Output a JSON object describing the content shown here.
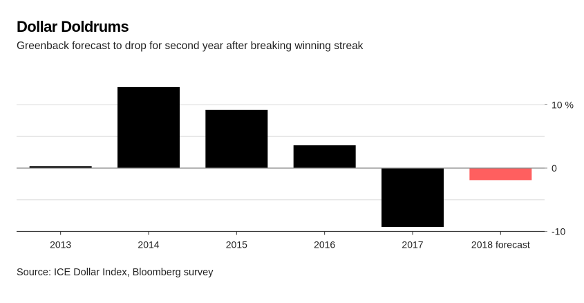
{
  "header": {
    "title": "Dollar Doldrums",
    "subtitle": "Greenback forecast to drop for second year after breaking winning streak"
  },
  "footer": {
    "source": "Source: ICE Dollar Index, Bloomberg survey"
  },
  "colors": {
    "actual": "#000000",
    "forecast": "#ff5f5f",
    "gridline": "#e3e3e3",
    "axis": "#888888"
  },
  "chart_data": {
    "type": "bar",
    "title": "Dollar Doldrums",
    "subtitle": "Greenback forecast to drop for second year after breaking winning streak",
    "xlabel": "",
    "ylabel": "%",
    "categories": [
      "2013",
      "2014",
      "2015",
      "2016",
      "2017",
      "2018 forecast"
    ],
    "values": [
      0.3,
      12.8,
      9.2,
      3.6,
      -9.3,
      -1.9
    ],
    "series_type": [
      "actual",
      "actual",
      "actual",
      "actual",
      "actual",
      "forecast"
    ],
    "ylim": [
      -10,
      14
    ],
    "yticks": [
      -10,
      0,
      10
    ],
    "ytick_labels": [
      "-10",
      "0",
      "10 %"
    ],
    "minor_gridlines": [
      -5,
      5
    ],
    "grid": true,
    "y_axis_side": "right",
    "legend": "none",
    "source": "Source: ICE Dollar Index, Bloomberg survey"
  }
}
